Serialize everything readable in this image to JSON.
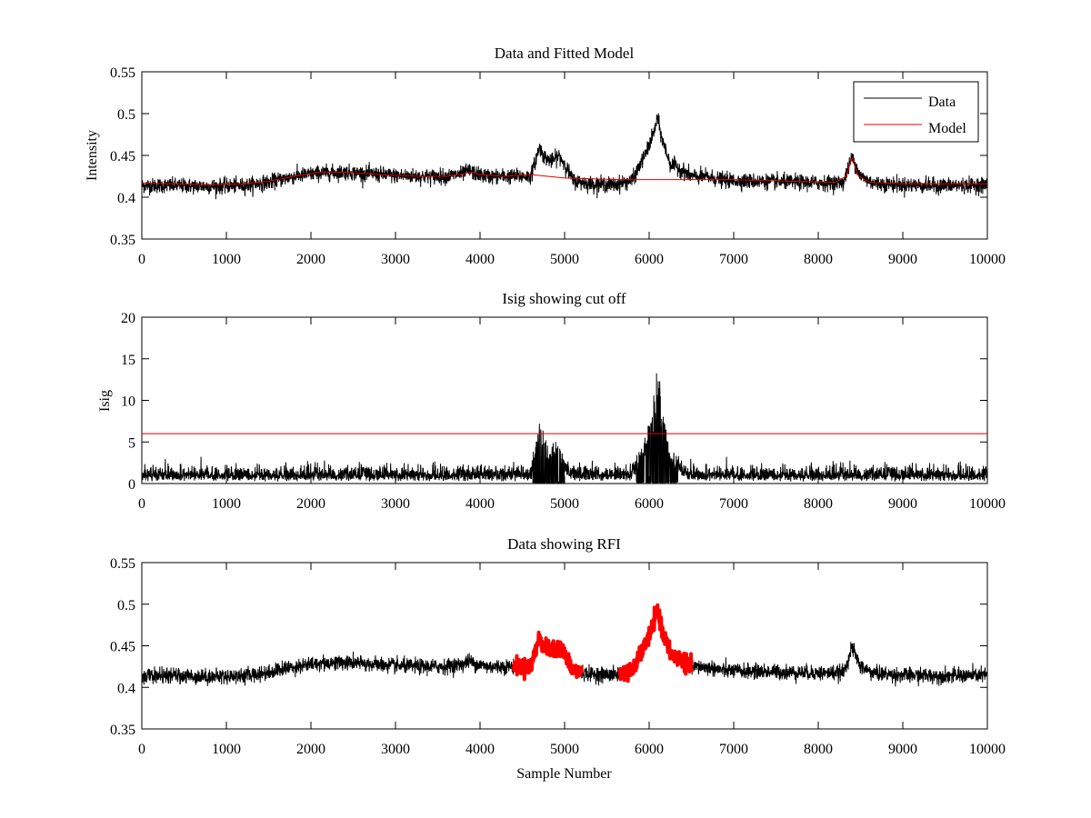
{
  "figure": {
    "background": "#ffffff"
  },
  "chart_data": [
    {
      "type": "line",
      "title": "Data and Fitted Model",
      "xlabel": "",
      "ylabel": "Intensity",
      "xlim": [
        0,
        10000
      ],
      "ylim": [
        0.35,
        0.55
      ],
      "xticks": [
        "0",
        "1000",
        "2000",
        "3000",
        "4000",
        "5000",
        "6000",
        "7000",
        "8000",
        "9000",
        "10000"
      ],
      "yticks": [
        "0.35",
        "0.4",
        "0.45",
        "0.5",
        "0.55"
      ],
      "legend": {
        "placement": "top-right",
        "entries": [
          "Data",
          "Model"
        ]
      },
      "series": [
        {
          "name": "Data",
          "color": "#000000",
          "noise": 0.0045,
          "x": [
            0,
            300,
            800,
            1200,
            1500,
            1800,
            2100,
            2400,
            2700,
            3000,
            3300,
            3600,
            3800,
            3870,
            3950,
            4100,
            4300,
            4600,
            4660,
            4700,
            4760,
            4850,
            4930,
            5000,
            5100,
            5300,
            5600,
            5800,
            5950,
            6050,
            6100,
            6150,
            6250,
            6350,
            6500,
            6700,
            6900,
            7300,
            7700,
            8100,
            8300,
            8400,
            8500,
            8650,
            8900,
            9300,
            9700,
            10000
          ],
          "y": [
            0.414,
            0.414,
            0.413,
            0.414,
            0.418,
            0.425,
            0.429,
            0.43,
            0.428,
            0.426,
            0.425,
            0.425,
            0.428,
            0.432,
            0.428,
            0.425,
            0.425,
            0.425,
            0.445,
            0.46,
            0.448,
            0.443,
            0.45,
            0.44,
            0.42,
            0.416,
            0.415,
            0.42,
            0.45,
            0.475,
            0.495,
            0.47,
            0.44,
            0.435,
            0.425,
            0.424,
            0.42,
            0.419,
            0.418,
            0.417,
            0.418,
            0.448,
            0.425,
            0.417,
            0.415,
            0.414,
            0.414,
            0.415
          ]
        },
        {
          "name": "Model",
          "color": "#e00000",
          "noise": 0,
          "x": [
            0,
            800,
            1200,
            1500,
            1800,
            2100,
            2400,
            2700,
            3000,
            3300,
            3600,
            3800,
            3900,
            4000,
            4300,
            4600,
            5000,
            5600,
            6500,
            7000,
            7700,
            8200,
            8330,
            8400,
            8470,
            8600,
            9000,
            9500,
            10000
          ],
          "y": [
            0.417,
            0.415,
            0.416,
            0.419,
            0.425,
            0.43,
            0.43,
            0.428,
            0.426,
            0.425,
            0.425,
            0.428,
            0.43,
            0.427,
            0.425,
            0.427,
            0.423,
            0.421,
            0.421,
            0.421,
            0.419,
            0.418,
            0.425,
            0.447,
            0.426,
            0.418,
            0.416,
            0.416,
            0.416
          ]
        }
      ]
    },
    {
      "type": "line",
      "title": "Isig showing cut off",
      "xlabel": "",
      "ylabel": "Isig",
      "xlim": [
        0,
        10000
      ],
      "ylim": [
        0,
        20
      ],
      "xticks": [
        "0",
        "1000",
        "2000",
        "3000",
        "4000",
        "5000",
        "6000",
        "7000",
        "8000",
        "9000",
        "10000"
      ],
      "yticks": [
        "0",
        "5",
        "10",
        "15",
        "20"
      ],
      "series": [
        {
          "name": "Isig",
          "color": "#000000",
          "noise": 0.7,
          "baseline": 0.6,
          "x": [
            0,
            4600,
            4660,
            4700,
            4760,
            4850,
            4930,
            5000,
            5100,
            5800,
            5950,
            6050,
            6100,
            6150,
            6250,
            6350,
            6450,
            6550,
            10000
          ],
          "y": [
            0.9,
            0.9,
            4.5,
            8.0,
            4.0,
            3.5,
            5.5,
            2.0,
            0.9,
            0.9,
            5.0,
            10.0,
            15.0,
            9.0,
            3.0,
            2.0,
            1.0,
            0.9,
            0.9
          ]
        },
        {
          "name": "cut off",
          "color": "#e00000",
          "noise": 0,
          "x": [
            0,
            10000
          ],
          "y": [
            6,
            6
          ]
        }
      ]
    },
    {
      "type": "line",
      "title": "Data showing RFI",
      "xlabel": "Sample Number",
      "ylabel": "",
      "xlim": [
        0,
        10000
      ],
      "ylim": [
        0.35,
        0.55
      ],
      "xticks": [
        "0",
        "1000",
        "2000",
        "3000",
        "4000",
        "5000",
        "6000",
        "7000",
        "8000",
        "9000",
        "10000"
      ],
      "yticks": [
        "0.35",
        "0.4",
        "0.45",
        "0.5",
        "0.55"
      ],
      "rfi_ranges": [
        [
          4400,
          5200
        ],
        [
          5650,
          6500
        ]
      ],
      "rfi_color": "#ff0000",
      "series": [
        {
          "name": "Data",
          "color": "#000000",
          "noise": 0.0045,
          "x": [
            0,
            300,
            800,
            1200,
            1500,
            1800,
            2100,
            2400,
            2700,
            3000,
            3300,
            3600,
            3800,
            3870,
            3950,
            4100,
            4300,
            4600,
            4660,
            4700,
            4760,
            4850,
            4930,
            5000,
            5100,
            5300,
            5600,
            5800,
            5950,
            6050,
            6100,
            6150,
            6250,
            6350,
            6500,
            6700,
            6900,
            7300,
            7700,
            8100,
            8300,
            8400,
            8500,
            8650,
            8900,
            9300,
            9700,
            10000
          ],
          "y": [
            0.414,
            0.414,
            0.413,
            0.414,
            0.418,
            0.425,
            0.429,
            0.43,
            0.428,
            0.426,
            0.425,
            0.425,
            0.428,
            0.432,
            0.428,
            0.425,
            0.425,
            0.425,
            0.445,
            0.46,
            0.448,
            0.443,
            0.45,
            0.44,
            0.42,
            0.416,
            0.415,
            0.42,
            0.45,
            0.475,
            0.495,
            0.47,
            0.44,
            0.435,
            0.425,
            0.424,
            0.42,
            0.419,
            0.418,
            0.417,
            0.418,
            0.448,
            0.425,
            0.417,
            0.415,
            0.414,
            0.414,
            0.415
          ]
        }
      ]
    }
  ]
}
